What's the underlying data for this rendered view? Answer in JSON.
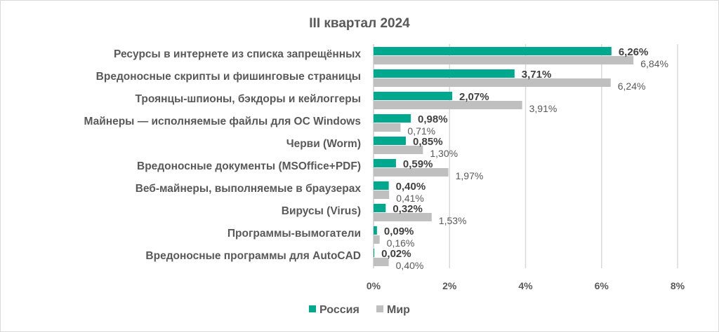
{
  "chart_data": {
    "type": "bar",
    "orientation": "horizontal",
    "title": "III квартал 2024",
    "xlabel": "",
    "ylabel": "",
    "xlim": [
      0,
      8
    ],
    "x_ticks": [
      0,
      2,
      4,
      6,
      8
    ],
    "x_tick_labels": [
      "0%",
      "2%",
      "4%",
      "6%",
      "8%"
    ],
    "grid": true,
    "legend_position": "bottom",
    "categories": [
      "Ресурсы в интернете из списка запрещённых",
      "Вредоносные скрипты и фишинговые страницы",
      "Троянцы-шпионы, бэкдоры и кейлоггеры",
      "Майнеры — исполняемые файлы для ОС Windows",
      "Черви (Worm)",
      "Вредоносные документы (MSOffice+PDF)",
      "Веб-майнеры, выполняемые в браузерах",
      "Вирусы (Virus)",
      "Программы-вымогатели",
      "Вредоносные программы для AutoCAD"
    ],
    "series": [
      {
        "name": "Россия",
        "color": "#00a88e",
        "values": [
          6.26,
          3.71,
          2.07,
          0.98,
          0.85,
          0.59,
          0.4,
          0.32,
          0.09,
          0.02
        ],
        "labels": [
          "6,26%",
          "3,71%",
          "2,07%",
          "0,98%",
          "0,85%",
          "0,59%",
          "0,40%",
          "0,32%",
          "0,09%",
          "0,02%"
        ]
      },
      {
        "name": "Мир",
        "color": "#bfbfbf",
        "values": [
          6.84,
          6.24,
          3.91,
          0.71,
          1.3,
          1.97,
          0.41,
          1.53,
          0.16,
          0.4
        ],
        "labels": [
          "6,84%",
          "6,24%",
          "3,91%",
          "0,71%",
          "1,30%",
          "1,97%",
          "0,41%",
          "1,53%",
          "0,16%",
          "0,40%"
        ]
      }
    ]
  }
}
